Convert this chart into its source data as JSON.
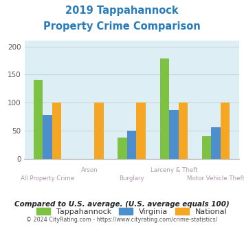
{
  "title_line1": "2019 Tappahannock",
  "title_line2": "Property Crime Comparison",
  "title_color": "#2b7bba",
  "categories": [
    "All Property Crime",
    "Arson",
    "Burglary",
    "Larceny & Theft",
    "Motor Vehicle Theft"
  ],
  "series": {
    "Tappahannock": [
      141,
      0,
      38,
      179,
      40
    ],
    "Virginia": [
      78,
      0,
      50,
      87,
      56
    ],
    "National": [
      100,
      100,
      100,
      100,
      100
    ]
  },
  "colors": {
    "Tappahannock": "#7dc243",
    "Virginia": "#4d8fcc",
    "National": "#f5a623"
  },
  "ylim": [
    0,
    210
  ],
  "yticks": [
    0,
    50,
    100,
    150,
    200
  ],
  "grid_color": "#c8d8e0",
  "plot_bg": "#ddeef4",
  "xlabel_color": "#aa99aa",
  "footnote1": "Compared to U.S. average. (U.S. average equals 100)",
  "footnote1_color": "#222222",
  "footnote2_left": "© 2024 CityRating.com - ",
  "footnote2_link": "https://www.cityrating.com/crime-statistics/",
  "footnote2_color": "#555555",
  "footnote2_link_color": "#4488cc",
  "bar_width": 0.22
}
